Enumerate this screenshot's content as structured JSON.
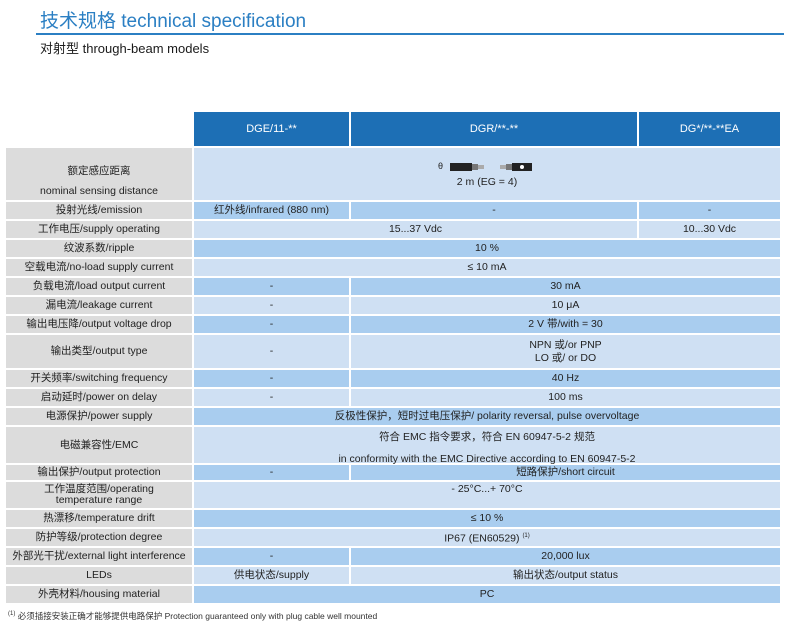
{
  "title": "技术规格 technical  specification",
  "subtitle": "对射型 through-beam models",
  "headers": [
    "DGE/11-**",
    "DGR/**-**",
    "DG*/**-**EA"
  ],
  "sensor_symbol": "θ",
  "rows": {
    "range": {
      "label_cn": "额定感应距离",
      "label_en": "nominal sensing distance",
      "value": "2 m (EG = 4)"
    },
    "emission": {
      "label": "投射光线/emission",
      "v1": "红外线/infrared (880 nm)",
      "v2": "-",
      "v3": "-"
    },
    "supply": {
      "label": "工作电压/supply operating",
      "v12": "15...37 Vdc",
      "v3": "10...30 Vdc"
    },
    "ripple": {
      "label": "纹波系数/ripple",
      "v": "10 %"
    },
    "noload": {
      "label": "空载电流/no-load supply current",
      "v": "≤ 10 mA"
    },
    "load": {
      "label": "负载电流/load output current",
      "v1": "-",
      "v23": "30 mA"
    },
    "leak": {
      "label": "漏电流/leakage current",
      "v1": "-",
      "v23": "10 μA"
    },
    "vdrop": {
      "label": "输出电压降/output voltage drop",
      "v1": "-",
      "v23": "2 V 带/with = 30"
    },
    "otype": {
      "label": "输出类型/output type",
      "v1": "-",
      "v23_a": "NPN 或/or PNP",
      "v23_b": "LO 或/ or DO"
    },
    "freq": {
      "label": "开关频率/switching frequency",
      "v1": "-",
      "v23": "40 Hz"
    },
    "delay": {
      "label": "启动延时/power on delay",
      "v1": "-",
      "v23": "100 ms"
    },
    "psupply": {
      "label": "电源保护/power supply",
      "v": "反极性保护，短时过电压保护/ polarity reversal, pulse overvoltage"
    },
    "emc": {
      "label": "电磁兼容性/EMC",
      "v_a": "符合 EMC 指令要求，符合 EN 60947-5-2 规范",
      "v_b": "in conformity with the EMC Directive according to EN 60947-5-2"
    },
    "oprot": {
      "label": "输出保护/output protection",
      "v1": "-",
      "v23": "短路保护/short circuit"
    },
    "optemp": {
      "label_a": "工作温度范围/operating",
      "label_b": "temperature range",
      "v": "- 25°C...+ 70°C"
    },
    "tdrift": {
      "label": "热漂移/temperature drift",
      "v": "≤ 10 %"
    },
    "prot": {
      "label": "防护等级/protection degree",
      "v": "IP67 (EN60529)",
      "sup": "(1)"
    },
    "extlight": {
      "label": "外部光干扰/external light interference",
      "v1": "-",
      "v23": "20,000 lux"
    },
    "leds": {
      "label": "LEDs",
      "v1": "供电状态/supply",
      "v23": "输出状态/output status"
    },
    "housing": {
      "label": "外壳材料/housing material",
      "v": "PC"
    }
  },
  "footnote": {
    "sup": "(1)",
    "text": "必须插接安装正确才能够提供电路保护 Protection guaranteed only with plug cable well  mounted"
  },
  "colors": {
    "header_blue": "#1d6fb5",
    "title_blue": "#2b7fc3",
    "row_light": "#cfe0f3",
    "row_dark": "#a9cdef",
    "label_grey": "#dcdcdc"
  }
}
